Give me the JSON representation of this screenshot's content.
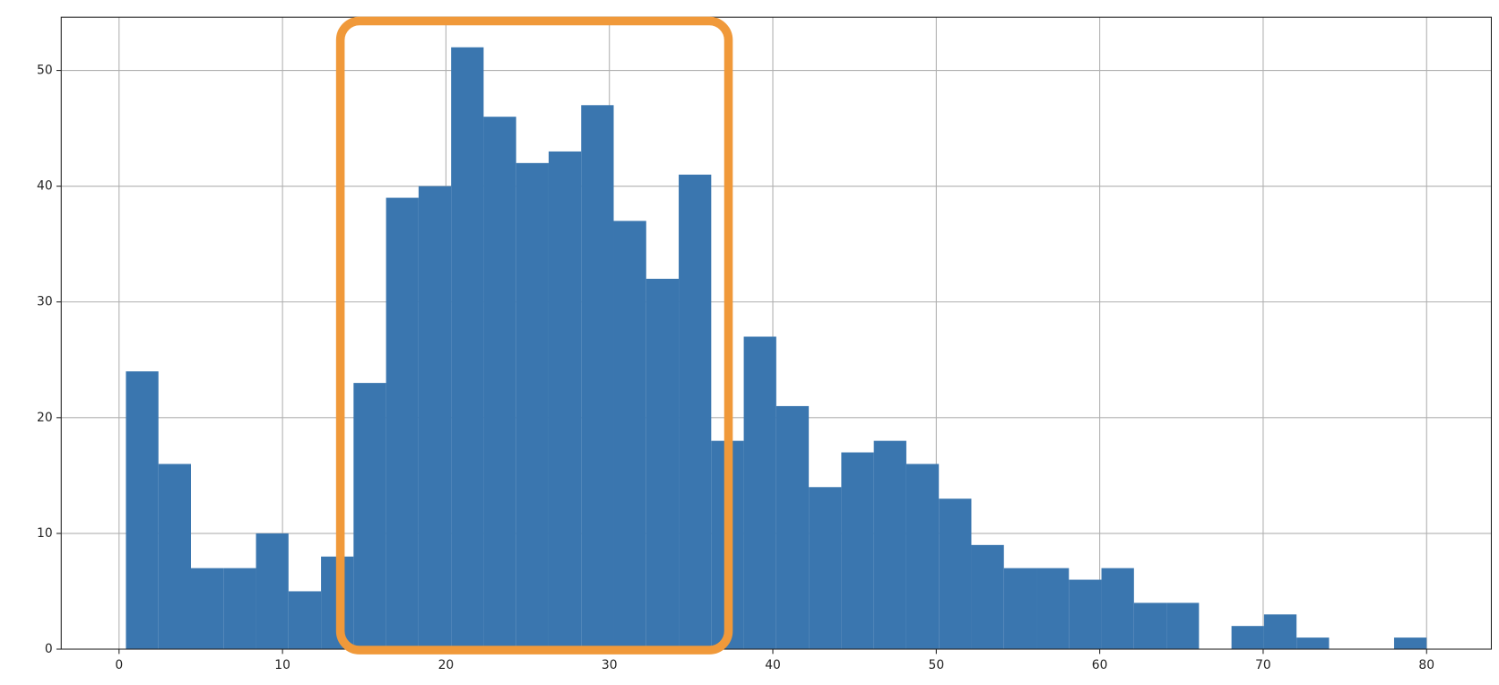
{
  "chart_data": {
    "type": "histogram",
    "bins": [
      0.42,
      2.4095,
      4.399,
      6.3885,
      8.378,
      10.3675,
      12.357,
      14.3465,
      16.336,
      18.3255,
      20.315,
      22.3045,
      24.294,
      26.2835,
      28.273,
      30.2625,
      32.252,
      34.2415,
      36.231,
      38.2205,
      40.21,
      42.1995,
      44.189,
      46.1785,
      48.168,
      50.1575,
      52.147,
      54.1365,
      56.126,
      58.1155,
      60.105,
      62.0945,
      64.084,
      66.0735,
      68.063,
      70.0525,
      72.042,
      74.0315,
      76.021,
      78.0105,
      80.0
    ],
    "counts": [
      24,
      16,
      7,
      7,
      10,
      5,
      8,
      23,
      39,
      40,
      52,
      46,
      42,
      43,
      47,
      37,
      32,
      41,
      18,
      27,
      21,
      14,
      17,
      18,
      16,
      13,
      9,
      7,
      7,
      6,
      7,
      4,
      4,
      0,
      2,
      3,
      1,
      0,
      0,
      1
    ],
    "color": "#3a76af",
    "xlim": [
      -3.54,
      83.96
    ],
    "xticks": [
      0,
      10,
      20,
      30,
      40,
      50,
      60,
      70,
      80
    ],
    "ylim": [
      0,
      54.6
    ],
    "yticks": [
      0,
      10,
      20,
      30,
      40,
      50
    ],
    "grid": true
  }
}
